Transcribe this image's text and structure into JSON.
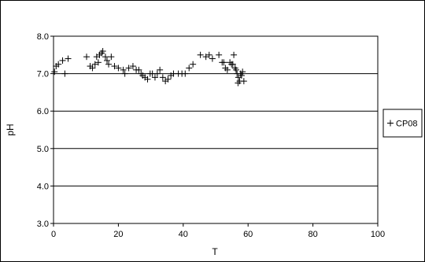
{
  "chart_data": {
    "type": "scatter",
    "title": "",
    "xlabel": "T",
    "ylabel": "pH",
    "xlim": [
      0,
      100
    ],
    "ylim": [
      3.0,
      8.0
    ],
    "xticks": [
      0,
      20,
      40,
      60,
      80,
      100
    ],
    "xtick_labels": [
      "0",
      "20",
      "40",
      "60",
      "80",
      "100"
    ],
    "yticks": [
      3.0,
      4.0,
      5.0,
      6.0,
      7.0,
      8.0
    ],
    "ytick_labels": [
      "3.0",
      "4.0",
      "5.0",
      "6.0",
      "7.0",
      "8.0"
    ],
    "grid": "horizontal",
    "legend_position": "right",
    "marker": "plus",
    "series": [
      {
        "name": "CP08",
        "color": "#000000",
        "points": [
          [
            0.3,
            7.05
          ],
          [
            0.8,
            7.2
          ],
          [
            1.5,
            7.25
          ],
          [
            2.8,
            7.35
          ],
          [
            3.5,
            7.0
          ],
          [
            4.5,
            7.4
          ],
          [
            10.2,
            7.45
          ],
          [
            11.3,
            7.2
          ],
          [
            12.0,
            7.15
          ],
          [
            12.8,
            7.25
          ],
          [
            13.3,
            7.45
          ],
          [
            13.8,
            7.3
          ],
          [
            14.2,
            7.5
          ],
          [
            14.8,
            7.55
          ],
          [
            15.2,
            7.6
          ],
          [
            16.0,
            7.45
          ],
          [
            16.5,
            7.35
          ],
          [
            17.0,
            7.25
          ],
          [
            17.8,
            7.45
          ],
          [
            18.8,
            7.2
          ],
          [
            20.0,
            7.15
          ],
          [
            21.5,
            7.1
          ],
          [
            22.0,
            7.0
          ],
          [
            23.2,
            7.15
          ],
          [
            24.5,
            7.2
          ],
          [
            25.5,
            7.1
          ],
          [
            26.3,
            7.1
          ],
          [
            27.0,
            7.0
          ],
          [
            27.5,
            6.95
          ],
          [
            28.2,
            6.9
          ],
          [
            29.0,
            6.85
          ],
          [
            29.8,
            7.0
          ],
          [
            30.5,
            7.0
          ],
          [
            31.3,
            6.9
          ],
          [
            32.0,
            7.0
          ],
          [
            32.8,
            7.1
          ],
          [
            33.7,
            6.9
          ],
          [
            34.5,
            6.8
          ],
          [
            35.3,
            6.85
          ],
          [
            36.2,
            6.95
          ],
          [
            37.0,
            7.0
          ],
          [
            38.5,
            7.0
          ],
          [
            39.6,
            7.0
          ],
          [
            40.6,
            7.0
          ],
          [
            41.8,
            7.15
          ],
          [
            43.0,
            7.25
          ],
          [
            45.3,
            7.5
          ],
          [
            47.0,
            7.45
          ],
          [
            48.0,
            7.5
          ],
          [
            49.0,
            7.4
          ],
          [
            51.0,
            7.5
          ],
          [
            52.0,
            7.3
          ],
          [
            52.5,
            7.3
          ],
          [
            53.0,
            7.15
          ],
          [
            53.6,
            7.1
          ],
          [
            54.4,
            7.3
          ],
          [
            54.9,
            7.25
          ],
          [
            55.3,
            7.25
          ],
          [
            55.6,
            7.5
          ],
          [
            56.0,
            7.15
          ],
          [
            56.3,
            7.1
          ],
          [
            56.6,
            7.0
          ],
          [
            57.0,
            6.9
          ],
          [
            57.4,
            6.8
          ],
          [
            57.7,
            7.0
          ],
          [
            58.0,
            6.95
          ],
          [
            58.3,
            7.05
          ],
          [
            58.7,
            6.8
          ],
          [
            56.9,
            6.75
          ]
        ]
      }
    ]
  }
}
